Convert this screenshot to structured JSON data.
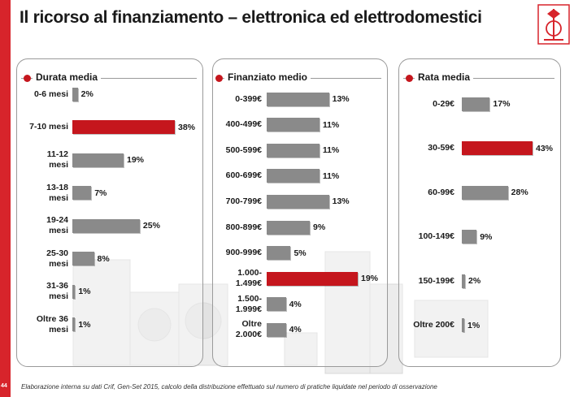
{
  "page": {
    "title": "Il ricorso al finanziamento – elettronica ed elettrodomestici",
    "page_number": "44",
    "footer": "Elaborazione interna su dati Crif, Gen-Set  2015, calcolo della distribuzione effettuato sul numero di pratiche liquidate nel periodo di osservazione"
  },
  "colors": {
    "accent": "#d7242b",
    "highlight": "#c5161d",
    "bar": "#8a8a8a"
  },
  "chart_data": [
    {
      "type": "bar",
      "orientation": "horizontal",
      "title": "Durata media",
      "categories": [
        "0-6 mesi",
        "7-10 mesi",
        "11-12\nmesi",
        "13-18\nmesi",
        "19-24\nmesi",
        "25-30\nmesi",
        "31-36\nmesi",
        "Oltre 36\nmesi"
      ],
      "values": [
        2,
        38,
        19,
        7,
        25,
        8,
        1,
        1
      ],
      "labels": [
        "2%",
        "38%",
        "19%",
        "7%",
        "25%",
        "8%",
        "1%",
        "1%"
      ],
      "highlight_index": 1,
      "xlim": [
        0,
        38
      ]
    },
    {
      "type": "bar",
      "orientation": "horizontal",
      "title": "Finanziato medio",
      "categories": [
        "0-399€",
        "400-499€",
        "500-599€",
        "600-699€",
        "700-799€",
        "800-899€",
        "900-999€",
        "1.000-\n1.499€",
        "1.500-\n1.999€",
        "Oltre\n2.000€"
      ],
      "values": [
        13,
        11,
        11,
        11,
        13,
        9,
        5,
        19,
        4,
        4
      ],
      "labels": [
        "13%",
        "11%",
        "11%",
        "11%",
        "13%",
        "9%",
        "5%",
        "19%",
        "4%",
        "4%"
      ],
      "highlight_index": 7,
      "xlim": [
        0,
        19
      ]
    },
    {
      "type": "bar",
      "orientation": "horizontal",
      "title": "Rata media",
      "categories": [
        "0-29€",
        "30-59€",
        "60-99€",
        "100-149€",
        "150-199€",
        "Oltre 200€"
      ],
      "values": [
        17,
        43,
        28,
        9,
        2,
        1
      ],
      "labels": [
        "17%",
        "43%",
        "28%",
        "9%",
        "2%",
        "1%"
      ],
      "highlight_index": 1,
      "xlim": [
        0,
        43
      ]
    }
  ]
}
